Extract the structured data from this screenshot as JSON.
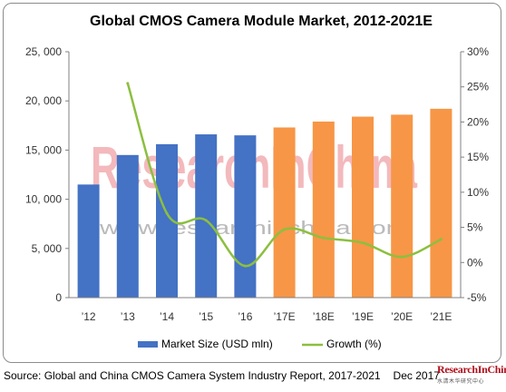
{
  "chart_data": {
    "type": "bar+line",
    "title": "Global CMOS Camera Module Market, 2012-2021E",
    "categories": [
      "’12",
      "’13",
      "’14",
      "’15",
      "’16",
      "’17E",
      "’18E",
      "’19E",
      "’20E",
      "’21E"
    ],
    "series": [
      {
        "name": "Market Size (USD mln)",
        "type": "bar",
        "axis": "left",
        "values": [
          11500,
          14500,
          15600,
          16600,
          16500,
          17300,
          17900,
          18400,
          18600,
          19200
        ],
        "colors": [
          "#4472c4",
          "#4472c4",
          "#4472c4",
          "#4472c4",
          "#4472c4",
          "#f79646",
          "#f79646",
          "#f79646",
          "#f79646",
          "#f79646"
        ]
      },
      {
        "name": "Growth (%)",
        "type": "line",
        "axis": "right",
        "color": "#8cbf3f",
        "values": [
          null,
          25.5,
          7.0,
          6.0,
          -0.5,
          4.7,
          3.5,
          2.8,
          0.8,
          3.3
        ]
      }
    ],
    "y_left": {
      "range": [
        0,
        25000
      ],
      "ticks": [
        "0",
        "5, 000",
        "10, 000",
        "15, 000",
        "20, 000",
        "25, 000"
      ]
    },
    "y_right": {
      "range": [
        -5,
        30
      ],
      "ticks": [
        "-5%",
        "0%",
        "5%",
        "10%",
        "15%",
        "20%",
        "25%",
        "30%"
      ]
    },
    "legend": {
      "placement": "bottom"
    },
    "grid": false,
    "watermark": {
      "text": "ResearchInChina",
      "url": "www.researchinchina.com"
    }
  },
  "source": "Source: Global and China CMOS Camera System Industry Report, 2017-2021",
  "date": "Dec 2017",
  "logo": {
    "text": "ResearchInChina",
    "subtext": "水清木华研究中心"
  }
}
